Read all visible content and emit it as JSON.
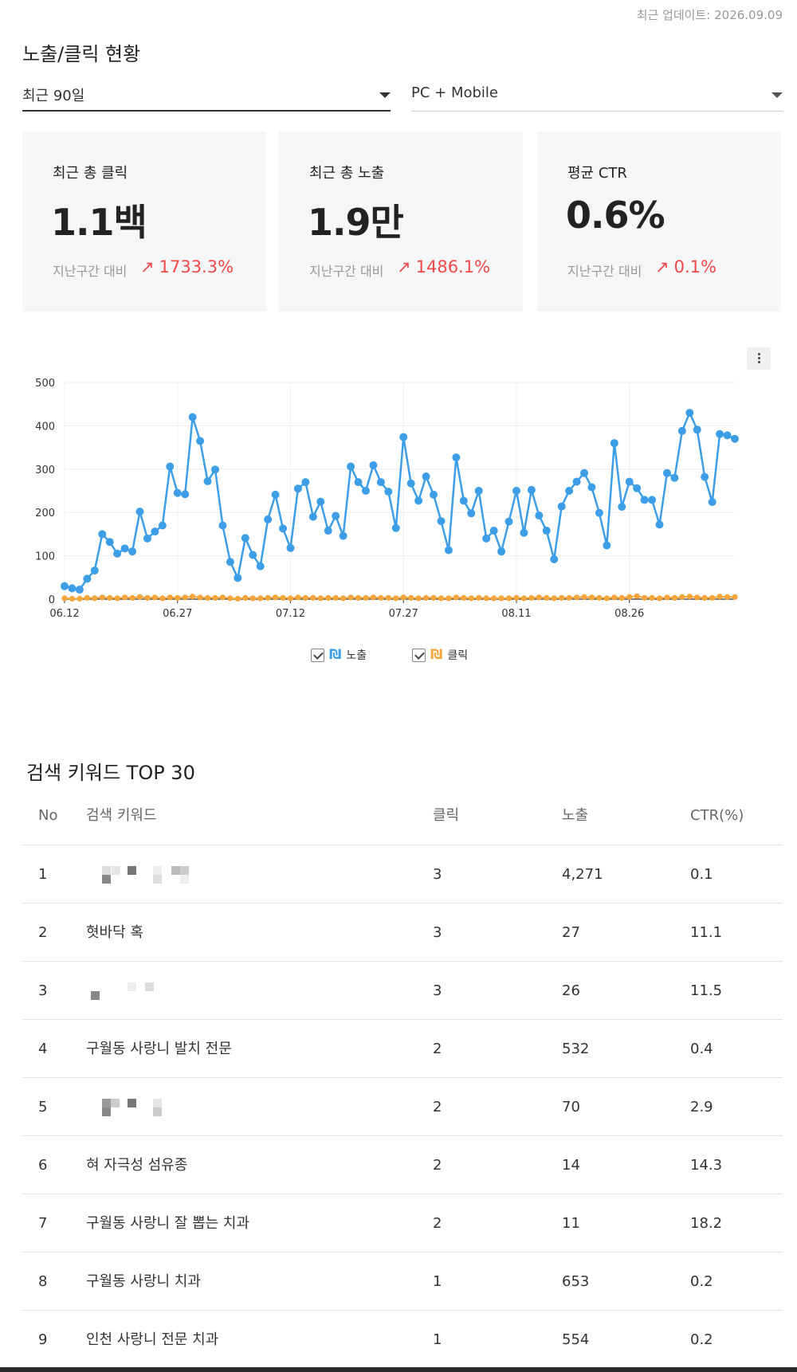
{
  "header": {
    "update_label": "최근 업데이트: 2026.09.09",
    "title": "노출/클릭 현황"
  },
  "filters": {
    "period": "최근 90일",
    "device": "PC + Mobile"
  },
  "cards": [
    {
      "label": "최근 총 클릭",
      "value": "1.1백",
      "compare_label": "지난구간 대비",
      "delta": "1733.3%"
    },
    {
      "label": "최근 총 노출",
      "value": "1.9만",
      "compare_label": "지난구간 대비",
      "delta": "1486.1%"
    },
    {
      "label": "평균 CTR",
      "value": "0.6%",
      "compare_label": "지난구간 대비",
      "delta": "0.1%"
    }
  ],
  "icons": {
    "delta": "arrow-up-right-icon",
    "menu": "more-vertical-icon",
    "legend": "check-icon"
  },
  "colors": {
    "impressions": "#3d9ee8",
    "clicks": "#f5a53a",
    "delta_up": "#f04848"
  },
  "chart_data": {
    "type": "line",
    "x_ticks": [
      "06.12",
      "06.27",
      "07.12",
      "07.27",
      "08.11",
      "08.26"
    ],
    "ylim": [
      0,
      500
    ],
    "y_ticks": [
      0,
      100,
      200,
      300,
      400,
      500
    ],
    "grid": true,
    "legend": "bottom-center",
    "series": [
      {
        "name": "노출",
        "values": [
          30,
          25,
          22,
          47,
          66,
          150,
          132,
          105,
          117,
          110,
          202,
          140,
          156,
          170,
          306,
          245,
          242,
          420,
          365,
          272,
          299,
          170,
          86,
          49,
          141,
          102,
          76,
          184,
          241,
          163,
          118,
          255,
          270,
          190,
          225,
          158,
          192,
          146,
          306,
          270,
          250,
          309,
          270,
          248,
          164,
          374,
          267,
          227,
          283,
          241,
          180,
          113,
          327,
          227,
          198,
          250,
          140,
          158,
          110,
          179,
          250,
          153,
          252,
          193,
          158,
          92,
          214,
          250,
          271,
          291,
          258,
          199,
          124,
          360,
          213,
          271,
          256,
          229,
          229,
          172,
          291,
          280,
          388,
          430,
          391,
          282,
          224,
          381,
          378,
          370
        ]
      },
      {
        "name": "클릭",
        "values": [
          2,
          1,
          1,
          3,
          2,
          4,
          3,
          2,
          4,
          3,
          5,
          3,
          4,
          2,
          4,
          3,
          4,
          6,
          4,
          3,
          3,
          4,
          2,
          1,
          3,
          2,
          2,
          3,
          4,
          3,
          2,
          4,
          3,
          3,
          2,
          3,
          3,
          2,
          4,
          3,
          3,
          4,
          3,
          3,
          2,
          4,
          3,
          2,
          3,
          3,
          2,
          2,
          4,
          3,
          2,
          3,
          2,
          2,
          2,
          2,
          3,
          2,
          3,
          4,
          3,
          2,
          3,
          3,
          4,
          5,
          4,
          3,
          2,
          4,
          3,
          5,
          7,
          3,
          3,
          2,
          4,
          3,
          5,
          6,
          4,
          3,
          3,
          6,
          5,
          5
        ]
      }
    ]
  },
  "table": {
    "title": "검색 키워드 TOP 30",
    "headers": {
      "no": "No",
      "keyword": "검색 키워드",
      "clicks": "클릭",
      "impressions": "노출",
      "ctr": "CTR(%)"
    },
    "rows": [
      {
        "no": "1",
        "keyword": "",
        "clicks": "3",
        "impressions": "4,271",
        "ctr": "0.1"
      },
      {
        "no": "2",
        "keyword": "혓바닥 혹",
        "clicks": "3",
        "impressions": "27",
        "ctr": "11.1"
      },
      {
        "no": "3",
        "keyword": "",
        "clicks": "3",
        "impressions": "26",
        "ctr": "11.5"
      },
      {
        "no": "4",
        "keyword": "구월동 사랑니 발치 전문",
        "clicks": "2",
        "impressions": "532",
        "ctr": "0.4"
      },
      {
        "no": "5",
        "keyword": "",
        "clicks": "2",
        "impressions": "70",
        "ctr": "2.9"
      },
      {
        "no": "6",
        "keyword": "혀 자극성 섬유종",
        "clicks": "2",
        "impressions": "14",
        "ctr": "14.3"
      },
      {
        "no": "7",
        "keyword": "구월동 사랑니 잘 뽑는 치과",
        "clicks": "2",
        "impressions": "11",
        "ctr": "18.2"
      },
      {
        "no": "8",
        "keyword": "구월동 사랑니 치과",
        "clicks": "1",
        "impressions": "653",
        "ctr": "0.2"
      },
      {
        "no": "9",
        "keyword": "인천 사랑니 전문 치과",
        "clicks": "1",
        "impressions": "554",
        "ctr": "0.2"
      }
    ]
  }
}
